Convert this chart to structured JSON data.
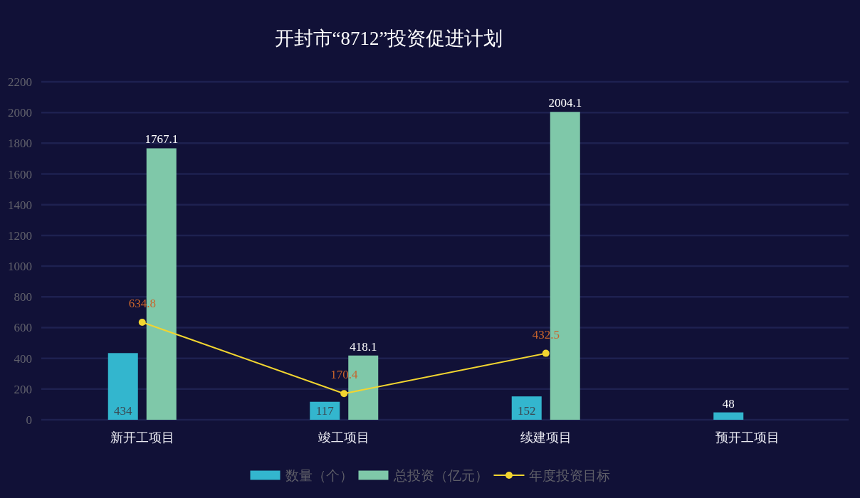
{
  "chart_data": {
    "type": "bar",
    "title": "开封市“8712”投资促进计划",
    "categories": [
      "新开工项目",
      "竣工项目",
      "续建项目",
      "预开工项目"
    ],
    "series": [
      {
        "name": "数量（个）",
        "color": "#33b6ce",
        "values": [
          434,
          117,
          152,
          48
        ]
      },
      {
        "name": "总投资（亿元）",
        "color": "#7fc8a9",
        "values": [
          1767.1,
          418.1,
          2004.1,
          null
        ]
      },
      {
        "name": "年度投资目标",
        "type": "line",
        "color": "#f2d530",
        "marker": "circle",
        "values": [
          634.8,
          170.4,
          432.5,
          null
        ]
      }
    ],
    "ylim": [
      0,
      2200
    ],
    "yticks": [
      0,
      200,
      400,
      600,
      800,
      1000,
      1200,
      1400,
      1600,
      1800,
      2000,
      2200
    ],
    "grid": "y",
    "legend": "bottom",
    "data_labels": true
  }
}
